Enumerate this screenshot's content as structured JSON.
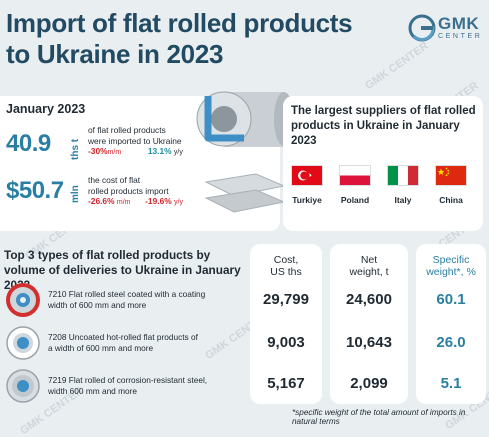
{
  "title_line1": "Import of flat rolled products",
  "title_line2": "to Ukraine in 2023",
  "logo": {
    "word": "GMK",
    "sub": "CENTER",
    "watermark": "GMK CENTER"
  },
  "stats": {
    "period": "January 2023",
    "volume": {
      "value": "40.9",
      "unit": "ths t",
      "text_line1": "of flat rolled products",
      "text_line2": "were imported to Ukraine",
      "mm_change": "-30%",
      "mm_suffix": "m/m",
      "yy_change": "13.1%",
      "yy_suffix": "y/y"
    },
    "cost": {
      "value": "$50.7",
      "unit": "mln",
      "text_line1": "the cost of flat",
      "text_line2": "rolled products import",
      "mm_change": "-26.6%",
      "mm_suffix": "m/m",
      "yy_change": "-19.6%",
      "yy_suffix": "y/y"
    }
  },
  "suppliers": {
    "title": "The largest suppliers of flat rolled products in Ukraine in January 2023",
    "countries": [
      {
        "name": "Turkiye",
        "icon": "turkey-flag-icon"
      },
      {
        "name": "Poland",
        "icon": "poland-flag-icon"
      },
      {
        "name": "Italy",
        "icon": "italy-flag-icon"
      },
      {
        "name": "China",
        "icon": "china-flag-icon"
      }
    ]
  },
  "top3": {
    "title": "Top 3 types of flat rolled products by volume of deliveries to Ukraine in January 2023",
    "headers": {
      "cost": [
        "Cost,",
        "US ths"
      ],
      "weight": [
        "Net",
        "weight, t"
      ],
      "share": [
        "Specific",
        "weight*, %"
      ]
    },
    "rows": [
      {
        "line1": "7210 Flat rolled steel coated with a coating",
        "line2": "width of 600 mm and more",
        "cost": "29,799",
        "weight": "24,600",
        "share": "60.1"
      },
      {
        "line1": "7208 Uncoated hot-rolled flat products of",
        "line2": "a width of 600 mm and more",
        "cost": "9,003",
        "weight": "10,643",
        "share": "26.0"
      },
      {
        "line1": "7219 Flat rolled of corrosion-resistant steel,",
        "line2": "width 600 mm and more",
        "cost": "5,167",
        "weight": "2,099",
        "share": "5.1"
      }
    ],
    "footnote": "*specific weight of the total amount of imports in natural terms"
  },
  "colors": {
    "title": "#224b63",
    "accent": "#2b7ea3",
    "negative": "#d2232a",
    "positive": "#1a8fa0"
  }
}
